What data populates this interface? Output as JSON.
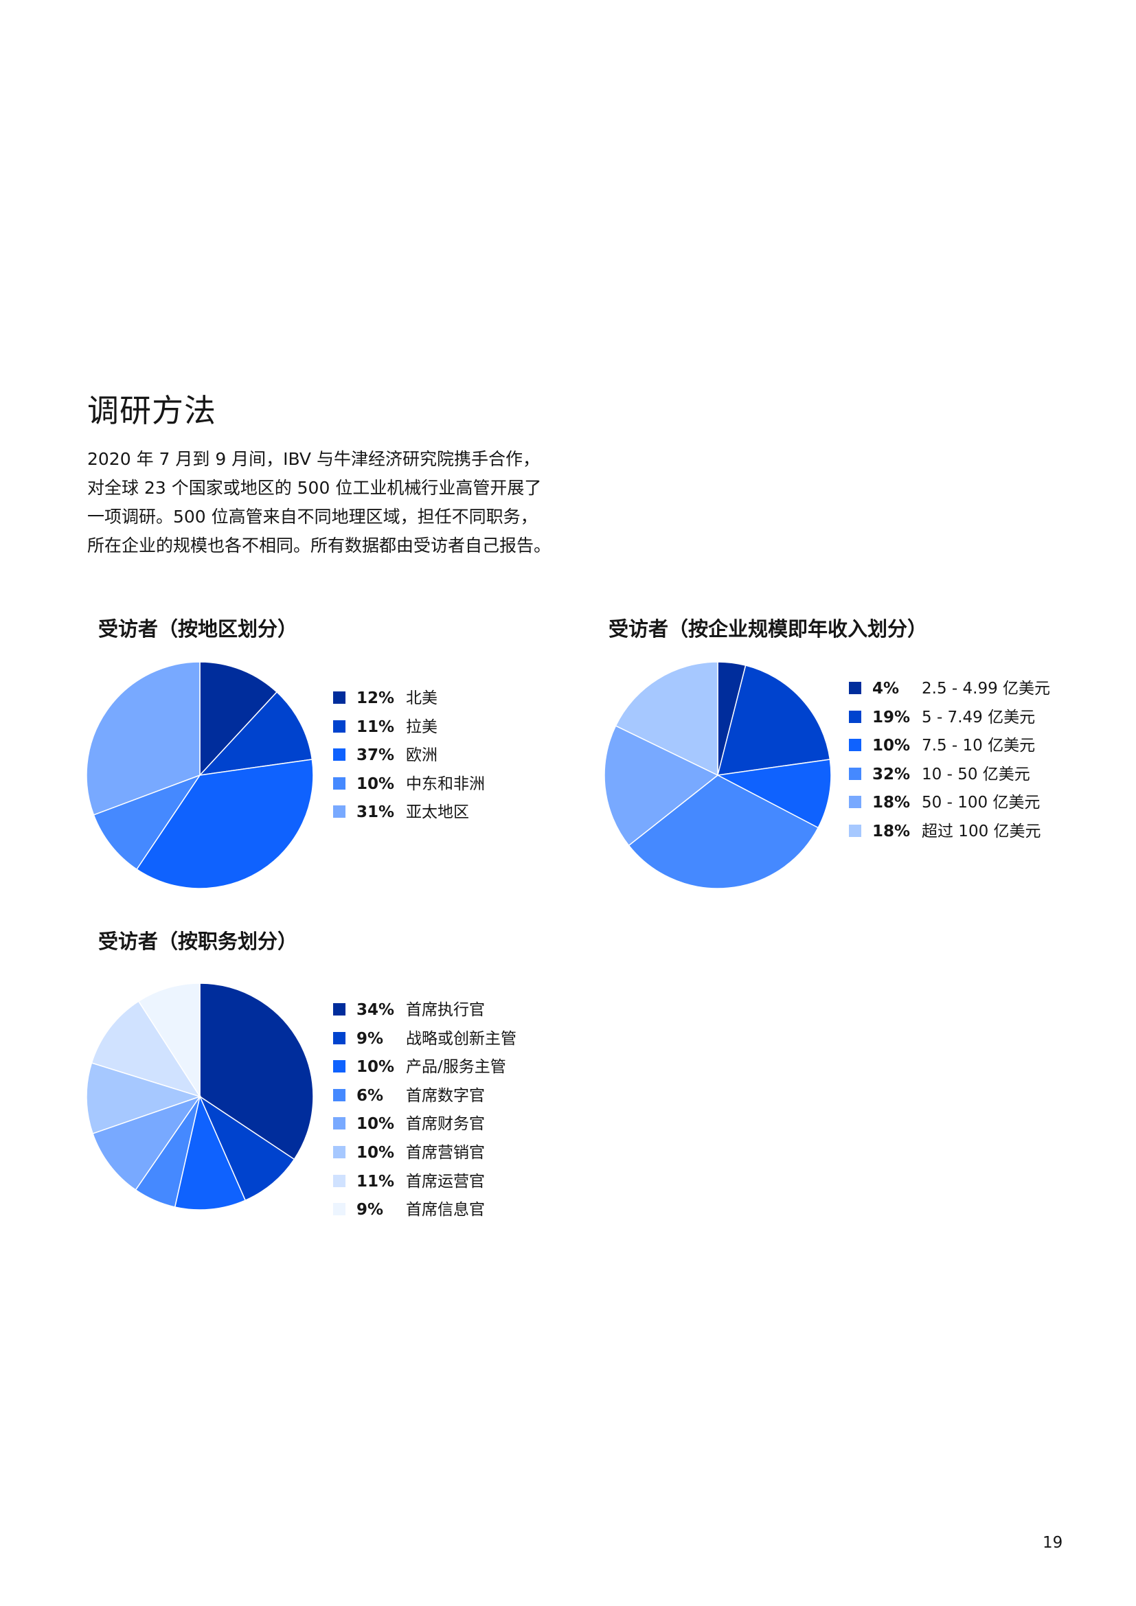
{
  "page": {
    "title": "调研方法",
    "intro": "2020 年 7 月到 9 月间，IBV 与牛津经济研究院携手合作，对全球 23 个国家或地区的 500 位工业机械行业高管开展了一项调研。500 位高管来自不同地理区域，担任不同职务，所在企业的规模也各不相同。所有数据都由受访者自己报告。",
    "page_number": "19"
  },
  "chart_data": [
    {
      "type": "pie",
      "title": "受访者（按地区划分）",
      "categories": [
        "北美",
        "拉美",
        "欧洲",
        "中东和非洲",
        "亚太地区"
      ],
      "values": [
        12,
        11,
        37,
        10,
        31
      ],
      "labels": [
        "12%",
        "11%",
        "37%",
        "10%",
        "31%"
      ],
      "colors": [
        "#002d9c",
        "#0043ce",
        "#0f62fe",
        "#4589ff",
        "#78a9ff"
      ],
      "legend": "right"
    },
    {
      "type": "pie",
      "title": "受访者（按企业规模即年收入划分）",
      "categories": [
        "2.5 - 4.99 亿美元",
        "5 - 7.49 亿美元",
        "7.5 - 10 亿美元",
        "10 - 50 亿美元",
        "50 - 100 亿美元",
        "超过 100 亿美元"
      ],
      "values": [
        4,
        19,
        10,
        32,
        18,
        18
      ],
      "labels": [
        "4%",
        "19%",
        "10%",
        "32%",
        "18%",
        "18%"
      ],
      "colors": [
        "#002d9c",
        "#0043ce",
        "#0f62fe",
        "#4589ff",
        "#78a9ff",
        "#a6c8ff"
      ],
      "legend": "right"
    },
    {
      "type": "pie",
      "title": "受访者（按职务划分）",
      "categories": [
        "首席执行官",
        "战略或创新主管",
        "产品/服务主管",
        "首席数字官",
        "首席财务官",
        "首席营销官",
        "首席运营官",
        "首席信息官"
      ],
      "values": [
        34,
        9,
        10,
        6,
        10,
        10,
        11,
        9
      ],
      "labels": [
        "34%",
        "9%",
        "10%",
        "6%",
        "10%",
        "10%",
        "11%",
        "9%"
      ],
      "colors": [
        "#002d9c",
        "#0043ce",
        "#0f62fe",
        "#4589ff",
        "#78a9ff",
        "#a6c8ff",
        "#d0e2ff",
        "#edf5ff"
      ],
      "legend": "right"
    }
  ]
}
